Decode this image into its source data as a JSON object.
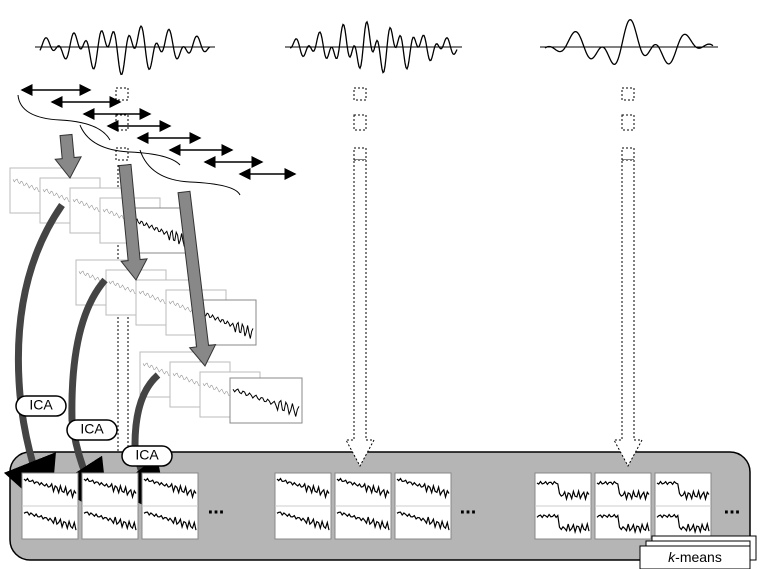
{
  "ica_labels": [
    "ICA",
    "ICA",
    "ICA"
  ],
  "ellipses": [
    "...",
    "...",
    "..."
  ],
  "kmeans": {
    "italic": "k",
    "text": "-means"
  }
}
